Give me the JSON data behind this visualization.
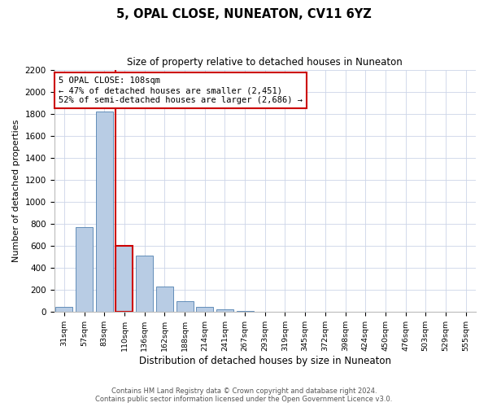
{
  "title": "5, OPAL CLOSE, NUNEATON, CV11 6YZ",
  "subtitle": "Size of property relative to detached houses in Nuneaton",
  "xlabel": "Distribution of detached houses by size in Nuneaton",
  "ylabel": "Number of detached properties",
  "categories": [
    "31sqm",
    "57sqm",
    "83sqm",
    "110sqm",
    "136sqm",
    "162sqm",
    "188sqm",
    "214sqm",
    "241sqm",
    "267sqm",
    "293sqm",
    "319sqm",
    "345sqm",
    "372sqm",
    "398sqm",
    "424sqm",
    "450sqm",
    "476sqm",
    "503sqm",
    "529sqm",
    "555sqm"
  ],
  "values": [
    50,
    770,
    1820,
    600,
    510,
    230,
    100,
    48,
    28,
    12,
    0,
    0,
    0,
    0,
    0,
    0,
    0,
    0,
    0,
    0,
    0
  ],
  "bar_color": "#b8cce4",
  "bar_edge_color": "#5080b0",
  "highlight_bar_index": 3,
  "highlight_edge_color": "#cc0000",
  "vline_color": "#cc0000",
  "annotation_text": "5 OPAL CLOSE: 108sqm\n← 47% of detached houses are smaller (2,451)\n52% of semi-detached houses are larger (2,686) →",
  "annotation_box_color": "#ffffff",
  "annotation_box_edge_color": "#cc0000",
  "ylim_max": 2200,
  "yticks": [
    0,
    200,
    400,
    600,
    800,
    1000,
    1200,
    1400,
    1600,
    1800,
    2000,
    2200
  ],
  "footer_line1": "Contains HM Land Registry data © Crown copyright and database right 2024.",
  "footer_line2": "Contains public sector information licensed under the Open Government Licence v3.0.",
  "bg_color": "#ffffff",
  "grid_color": "#ccd5e8"
}
